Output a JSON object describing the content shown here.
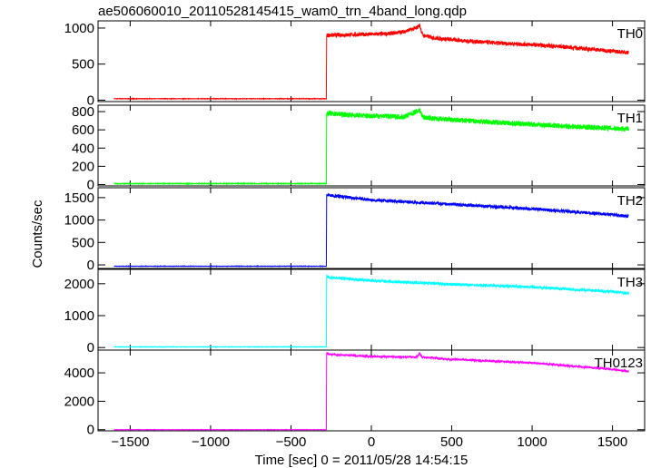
{
  "chart_data": {
    "type": "line",
    "title": "ae506060010_20110528145415_wam0_trn_4band_long.qdp",
    "xlabel": "Time [sec] 0 = 2011/05/28 14:54:15",
    "ylabel": "Counts/sec",
    "xlim": [
      -1700,
      1700
    ],
    "xticks": [
      {
        "value": -1500,
        "label": "−1500"
      },
      {
        "value": -1000,
        "label": "−1000"
      },
      {
        "value": -500,
        "label": "−500"
      },
      {
        "value": 0,
        "label": "0"
      },
      {
        "value": 500,
        "label": "500"
      },
      {
        "value": 1000,
        "label": "1000"
      },
      {
        "value": 1500,
        "label": "1500"
      }
    ],
    "grid": false,
    "legend": "none",
    "panels": [
      {
        "name": "TH0",
        "color": "#ff0000",
        "ylim": [
          -20,
          1100
        ],
        "yticks": [
          {
            "value": 0,
            "label": "0"
          },
          {
            "value": 500,
            "label": "500"
          },
          {
            "value": 1000,
            "label": "1000"
          }
        ],
        "x": [
          -1600,
          -280,
          -278,
          -260,
          -100,
          100,
          200,
          280,
          300,
          320,
          400,
          600,
          800,
          1000,
          1200,
          1400,
          1600
        ],
        "y": [
          20,
          20,
          900,
          900,
          910,
          920,
          950,
          1000,
          1040,
          900,
          860,
          820,
          790,
          770,
          740,
          700,
          660
        ],
        "noise": 28
      },
      {
        "name": "TH1",
        "color": "#00ff00",
        "ylim": [
          -15,
          870
        ],
        "yticks": [
          {
            "value": 0,
            "label": "0"
          },
          {
            "value": 200,
            "label": "200"
          },
          {
            "value": 400,
            "label": "400"
          },
          {
            "value": 600,
            "label": "600"
          },
          {
            "value": 800,
            "label": "800"
          }
        ],
        "x": [
          -1600,
          -280,
          -278,
          -260,
          -100,
          100,
          200,
          280,
          300,
          320,
          400,
          600,
          800,
          1000,
          1200,
          1400,
          1600
        ],
        "y": [
          10,
          10,
          780,
          780,
          760,
          750,
          740,
          800,
          820,
          740,
          720,
          700,
          680,
          660,
          640,
          625,
          610
        ],
        "noise": 28
      },
      {
        "name": "TH2",
        "color": "#0000ff",
        "ylim": [
          -80,
          1720
        ],
        "yticks": [
          {
            "value": 0,
            "label": "0"
          },
          {
            "value": 500,
            "label": "500"
          },
          {
            "value": 1000,
            "label": "1000"
          },
          {
            "value": 1500,
            "label": "1500"
          }
        ],
        "x": [
          -1600,
          -280,
          -278,
          -260,
          0,
          500,
          1000,
          1500,
          1600
        ],
        "y": [
          -30,
          -30,
          1560,
          1550,
          1450,
          1350,
          1250,
          1120,
          1080
        ],
        "noise": 35
      },
      {
        "name": "TH3",
        "color": "#00ffff",
        "ylim": [
          -80,
          2450
        ],
        "yticks": [
          {
            "value": 0,
            "label": "0"
          },
          {
            "value": 1000,
            "label": "1000"
          },
          {
            "value": 2000,
            "label": "2000"
          }
        ],
        "x": [
          -1600,
          -280,
          -278,
          -260,
          0,
          500,
          1000,
          1500,
          1600
        ],
        "y": [
          20,
          20,
          2250,
          2200,
          2100,
          1980,
          1900,
          1750,
          1700
        ],
        "noise": 45
      },
      {
        "name": "TH0123",
        "color": "#ff00ff",
        "ylim": [
          -80,
          5600
        ],
        "yticks": [
          {
            "value": 0,
            "label": "0"
          },
          {
            "value": 2000,
            "label": "2000"
          },
          {
            "value": 4000,
            "label": "4000"
          }
        ],
        "x": [
          -1600,
          -280,
          -278,
          -260,
          0,
          280,
          300,
          320,
          500,
          1000,
          1500,
          1600
        ],
        "y": [
          0,
          0,
          5400,
          5300,
          5150,
          5100,
          5350,
          5100,
          4950,
          4700,
          4250,
          4100
        ],
        "noise": 70
      }
    ]
  }
}
